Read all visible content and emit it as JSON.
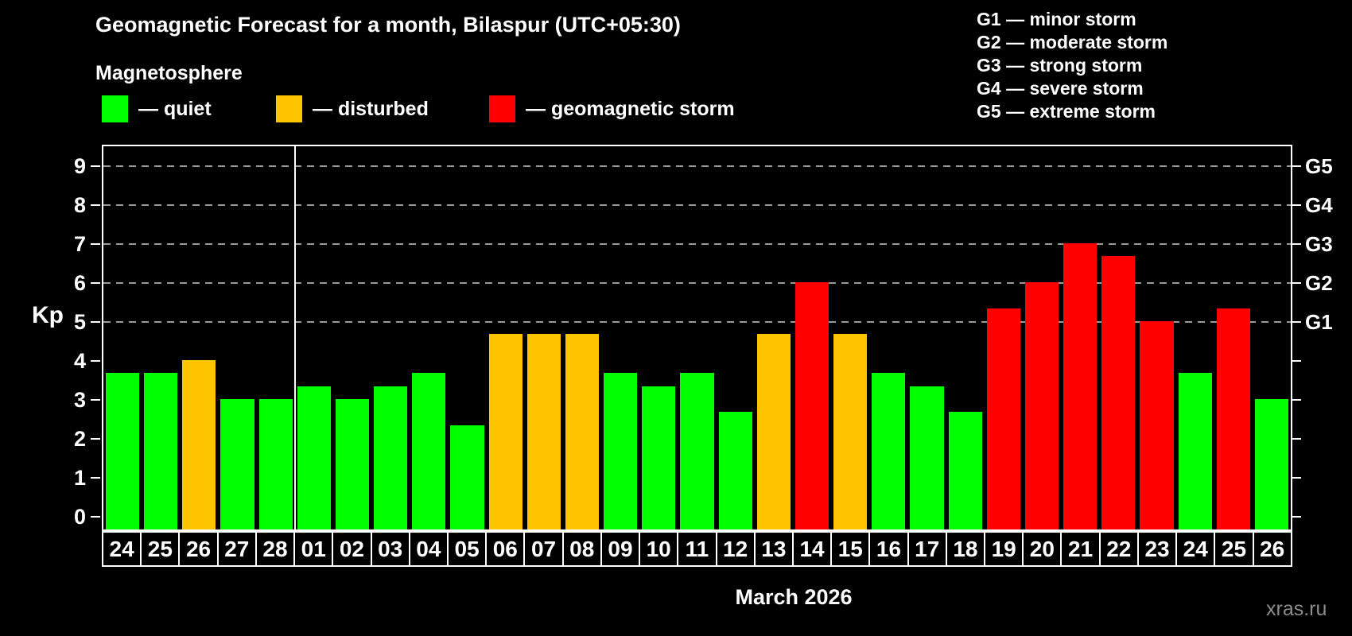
{
  "title": "Geomagnetic Forecast for a month, Bilaspur (UTC+05:30)",
  "subtitle": "Magnetosphere",
  "legend": {
    "quiet": {
      "label": "— quiet",
      "color": "#00FF00"
    },
    "disturbed": {
      "label": "— disturbed",
      "color": "#FFC400"
    },
    "storm": {
      "label": "— geomagnetic storm",
      "color": "#FF0000"
    }
  },
  "g_legend": {
    "lines": [
      "G1 — minor storm",
      "G2 — moderate storm",
      "G3 — strong storm",
      "G4 — severe storm",
      "G5 — extreme storm"
    ]
  },
  "watermark": "xras.ru",
  "chart_data": {
    "type": "bar",
    "title": "Geomagnetic Forecast for a month, Bilaspur (UTC+05:30)",
    "subtitle": "Magnetosphere",
    "ylabel": "Kp",
    "xlabel": "March 2026",
    "ylim": [
      0,
      9
    ],
    "y_ticks": [
      0,
      1,
      2,
      3,
      4,
      5,
      6,
      7,
      8,
      9
    ],
    "gridlines_at": [
      5,
      6,
      7,
      8,
      9
    ],
    "grid": "dashed horizontal at Kp 5-9 only",
    "legend_position": "top",
    "right_axis_levels": [
      {
        "label": "G1",
        "kp": 5
      },
      {
        "label": "G2",
        "kp": 6
      },
      {
        "label": "G3",
        "kp": 7
      },
      {
        "label": "G4",
        "kp": 8
      },
      {
        "label": "G5",
        "kp": 9
      }
    ],
    "palette": {
      "quiet": "#00FF00",
      "disturbed": "#FFC400",
      "storm": "#FF0000"
    },
    "separator_after_bar": 5,
    "month_label": "March 2026",
    "categories": [
      "24",
      "25",
      "26",
      "27",
      "28",
      "01",
      "02",
      "03",
      "04",
      "05",
      "06",
      "07",
      "08",
      "09",
      "10",
      "11",
      "12",
      "13",
      "14",
      "15",
      "16",
      "17",
      "18",
      "19",
      "20",
      "21",
      "22",
      "23",
      "24",
      "25",
      "26"
    ],
    "values": [
      3.67,
      3.67,
      4,
      3,
      3,
      3.33,
      3,
      3.33,
      3.67,
      2.33,
      4.67,
      4.67,
      4.67,
      3.67,
      3.33,
      3.67,
      2.67,
      4.67,
      6,
      4.67,
      3.67,
      3.33,
      2.67,
      5.33,
      6,
      7,
      6.67,
      5,
      3.67,
      5.33,
      3
    ],
    "statuses": [
      "quiet",
      "quiet",
      "disturbed",
      "quiet",
      "quiet",
      "quiet",
      "quiet",
      "quiet",
      "quiet",
      "quiet",
      "disturbed",
      "disturbed",
      "disturbed",
      "quiet",
      "quiet",
      "quiet",
      "quiet",
      "disturbed",
      "storm",
      "disturbed",
      "quiet",
      "quiet",
      "quiet",
      "storm",
      "storm",
      "storm",
      "storm",
      "storm",
      "quiet",
      "storm",
      "quiet"
    ]
  }
}
